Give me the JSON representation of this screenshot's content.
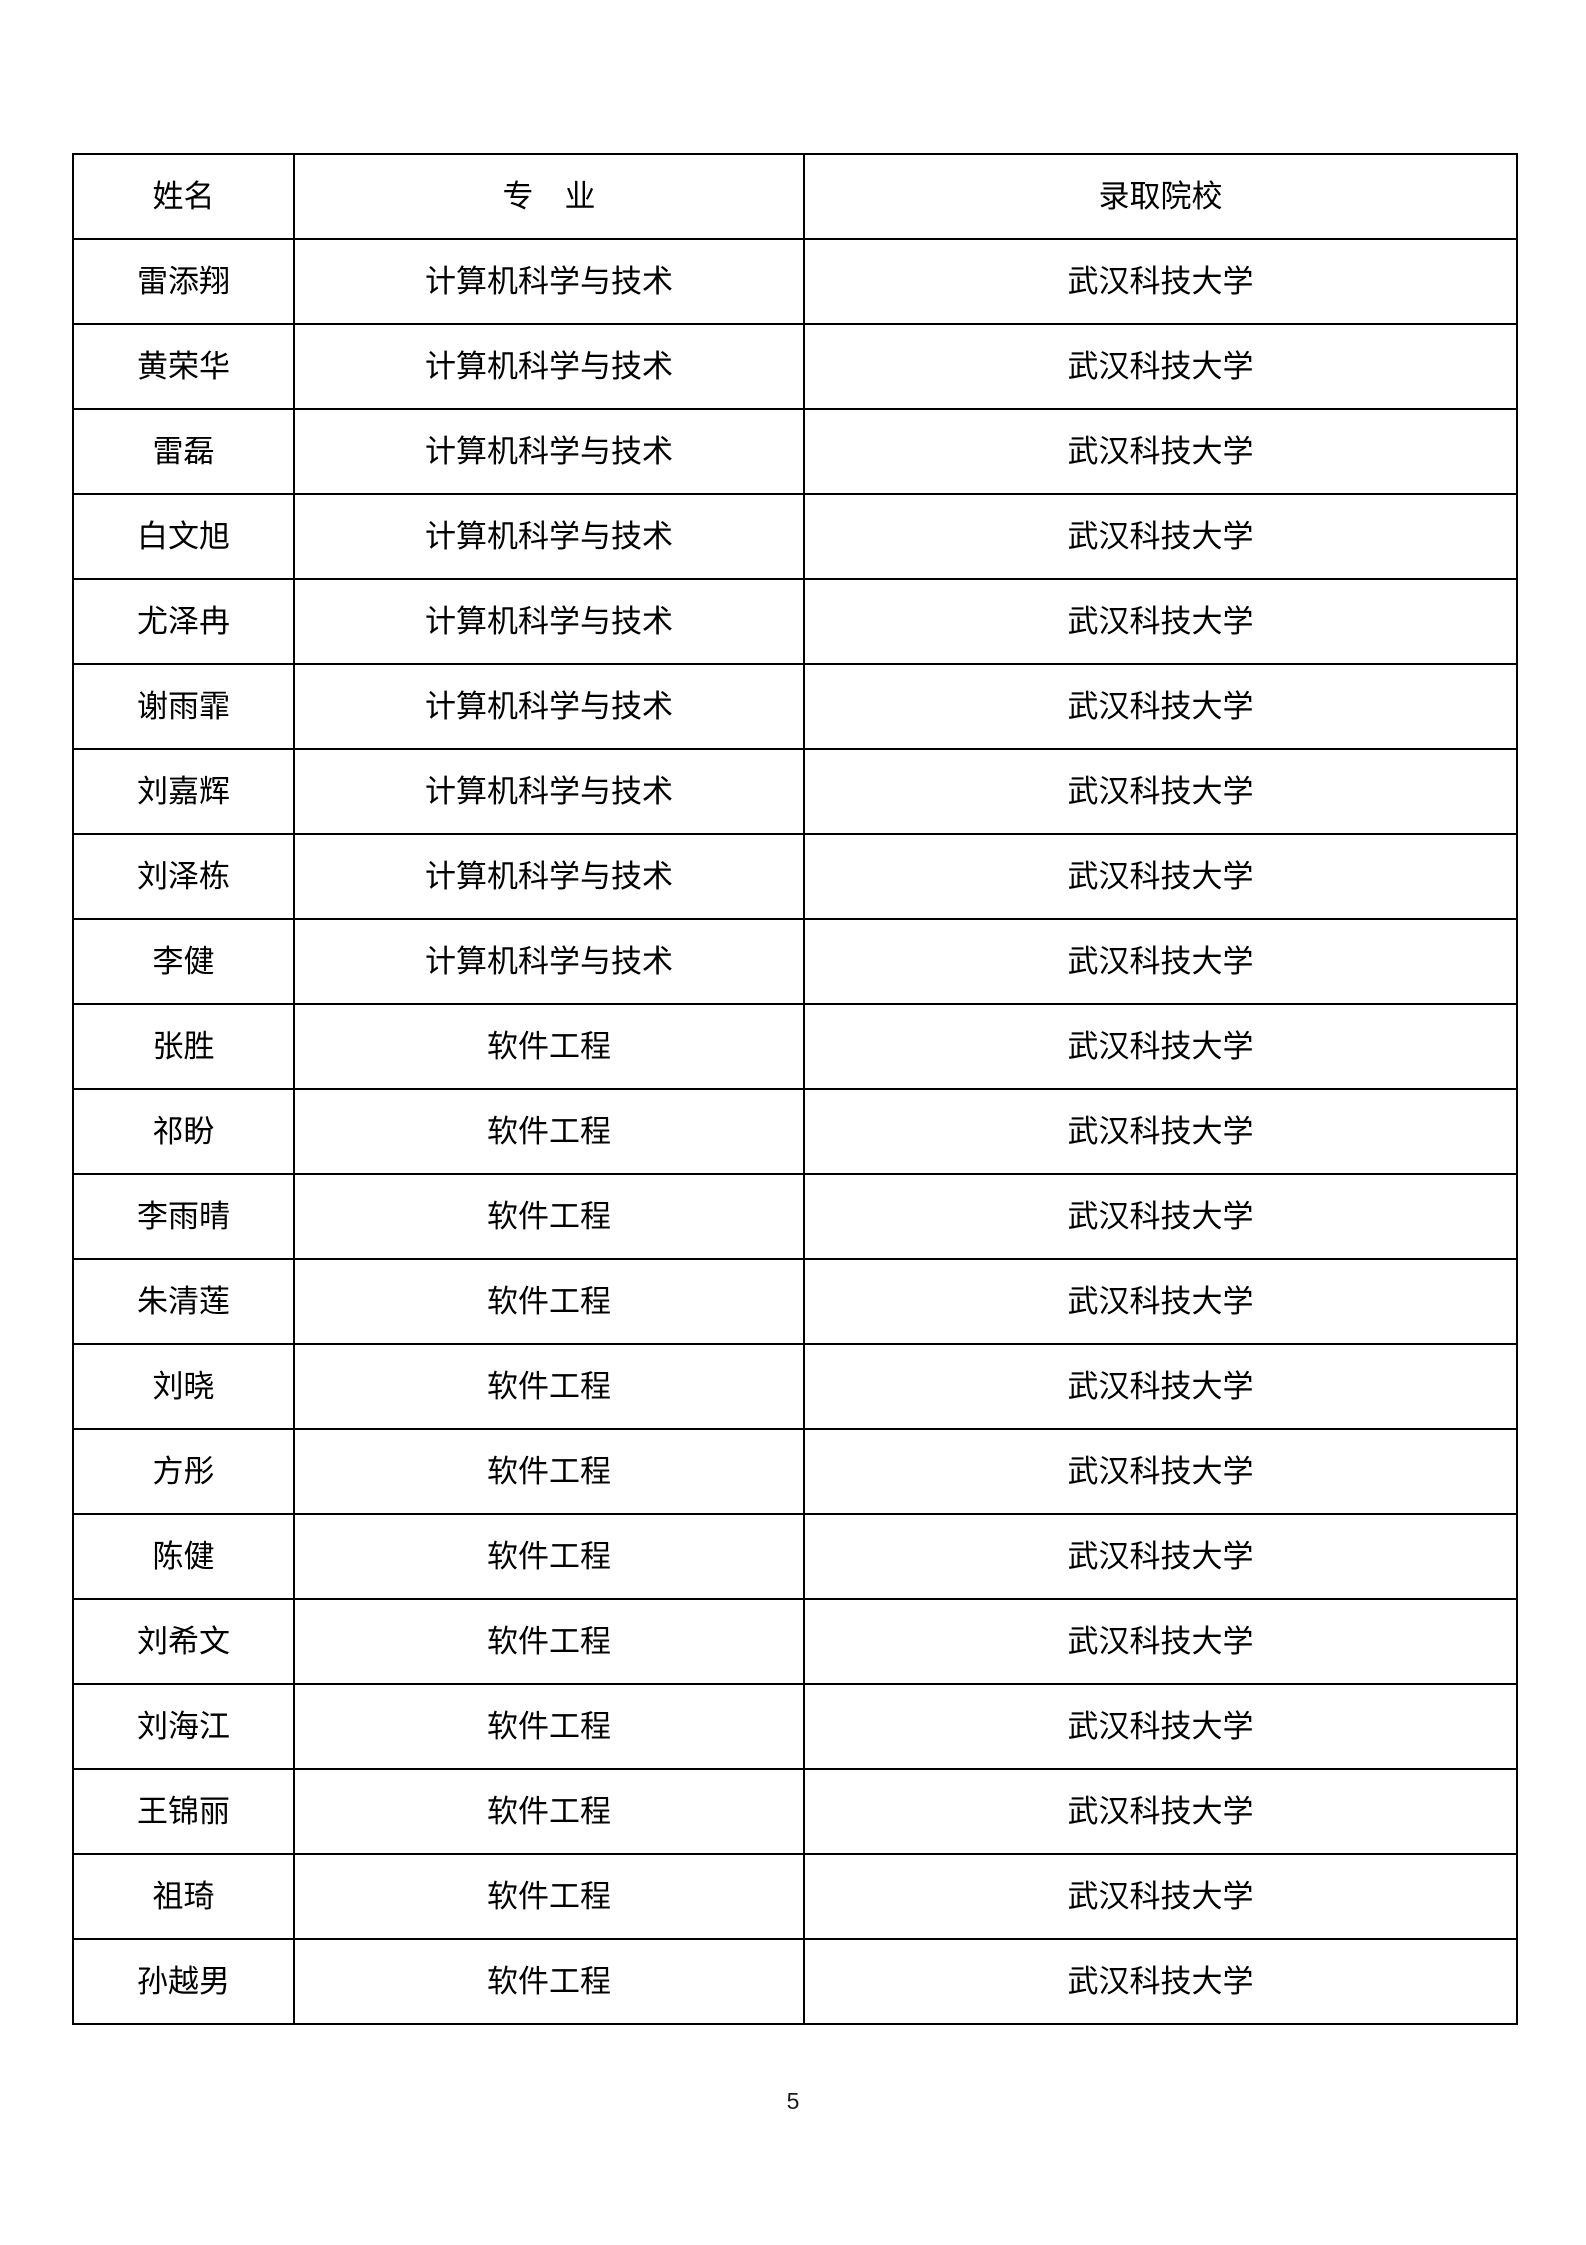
{
  "page": {
    "number": "5"
  },
  "colors": {
    "background": "#ffffff",
    "border": "#000000",
    "text": "#000000"
  },
  "table": {
    "headers": {
      "name": "姓名",
      "major": "专　业",
      "school": "录取院校"
    },
    "rows": [
      {
        "name": "雷添翔",
        "major": "计算机科学与技术",
        "school": "武汉科技大学"
      },
      {
        "name": "黄荣华",
        "major": "计算机科学与技术",
        "school": "武汉科技大学"
      },
      {
        "name": "雷磊",
        "major": "计算机科学与技术",
        "school": "武汉科技大学"
      },
      {
        "name": "白文旭",
        "major": "计算机科学与技术",
        "school": "武汉科技大学"
      },
      {
        "name": "尤泽冉",
        "major": "计算机科学与技术",
        "school": "武汉科技大学"
      },
      {
        "name": "谢雨霏",
        "major": "计算机科学与技术",
        "school": "武汉科技大学"
      },
      {
        "name": "刘嘉辉",
        "major": "计算机科学与技术",
        "school": "武汉科技大学"
      },
      {
        "name": "刘泽栋",
        "major": "计算机科学与技术",
        "school": "武汉科技大学"
      },
      {
        "name": "李健",
        "major": "计算机科学与技术",
        "school": "武汉科技大学"
      },
      {
        "name": "张胜",
        "major": "软件工程",
        "school": "武汉科技大学"
      },
      {
        "name": "祁盼",
        "major": "软件工程",
        "school": "武汉科技大学"
      },
      {
        "name": "李雨晴",
        "major": "软件工程",
        "school": "武汉科技大学"
      },
      {
        "name": "朱清莲",
        "major": "软件工程",
        "school": "武汉科技大学"
      },
      {
        "name": "刘晓",
        "major": "软件工程",
        "school": "武汉科技大学"
      },
      {
        "name": "方彤",
        "major": "软件工程",
        "school": "武汉科技大学"
      },
      {
        "name": "陈健",
        "major": "软件工程",
        "school": "武汉科技大学"
      },
      {
        "name": "刘希文",
        "major": "软件工程",
        "school": "武汉科技大学"
      },
      {
        "name": "刘海江",
        "major": "软件工程",
        "school": "武汉科技大学"
      },
      {
        "name": "王锦丽",
        "major": "软件工程",
        "school": "武汉科技大学"
      },
      {
        "name": "祖琦",
        "major": "软件工程",
        "school": "武汉科技大学"
      },
      {
        "name": "孙越男",
        "major": "软件工程",
        "school": "武汉科技大学"
      }
    ]
  }
}
